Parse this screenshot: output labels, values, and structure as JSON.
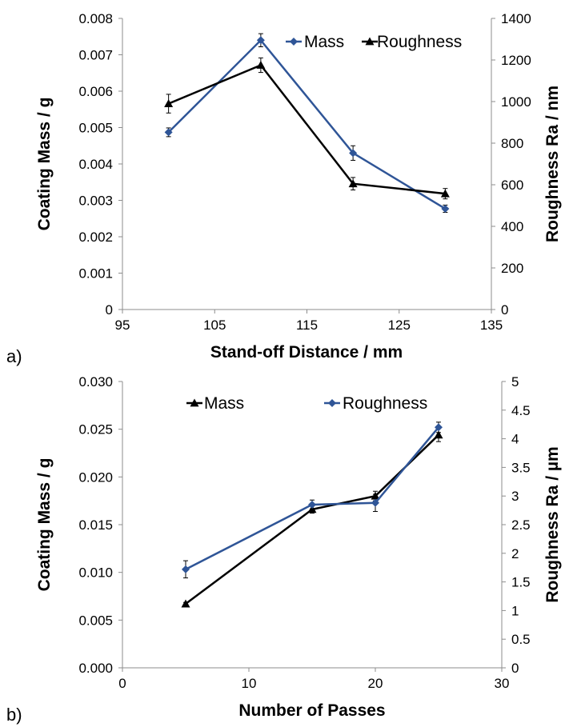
{
  "chart_data": [
    {
      "type": "line",
      "panel_label": "a)",
      "xlabel": "Stand-off Distance / mm",
      "ylabel": "Coating Mass / g",
      "y2label": "Roughness Ra / nm",
      "xlim": [
        95,
        135
      ],
      "xticks": [
        "95",
        "105",
        "115",
        "125",
        "135"
      ],
      "ylim": [
        0,
        0.008
      ],
      "yticks": [
        "0",
        "0.001",
        "0.002",
        "0.003",
        "0.004",
        "0.005",
        "0.006",
        "0.007",
        "0.008"
      ],
      "y2lim": [
        0,
        1400
      ],
      "y2ticks": [
        "0",
        "200",
        "400",
        "600",
        "800",
        "1000",
        "1200",
        "1400"
      ],
      "legend_position": "top-right",
      "series": [
        {
          "name": "Mass",
          "axis": "left",
          "marker": "diamond",
          "color": "#2f5597",
          "x": [
            100,
            110,
            120,
            130
          ],
          "y": [
            0.00487,
            0.0074,
            0.0043,
            0.00277
          ],
          "err": [
            0.00012,
            0.00018,
            0.0002,
            0.0001
          ]
        },
        {
          "name": "Roughness",
          "axis": "right",
          "marker": "triangle",
          "color": "#000000",
          "x": [
            100,
            110,
            120,
            130
          ],
          "y": [
            990,
            1175,
            605,
            557
          ],
          "err": [
            45,
            35,
            30,
            25
          ]
        }
      ]
    },
    {
      "type": "line",
      "panel_label": "b)",
      "xlabel": "Number of Passes",
      "ylabel": "Coating Mass / g",
      "y2label": "Roughness Ra / µm",
      "xlim": [
        0,
        30
      ],
      "xticks": [
        "0",
        "10",
        "20",
        "30"
      ],
      "ylim": [
        0,
        0.03
      ],
      "yticks": [
        "0.000",
        "0.005",
        "0.010",
        "0.015",
        "0.020",
        "0.025",
        "0.030"
      ],
      "y2lim": [
        0,
        5
      ],
      "y2ticks": [
        "0",
        "0.5",
        "1",
        "1.5",
        "2",
        "2.5",
        "3",
        "3.5",
        "4",
        "4.5",
        "5"
      ],
      "legend_position": "top",
      "series": [
        {
          "name": "Mass",
          "axis": "left",
          "marker": "triangle",
          "color": "#000000",
          "x": [
            5,
            15,
            20,
            25
          ],
          "y": [
            0.0067,
            0.0166,
            0.018,
            0.0244
          ],
          "err": [
            0.00015,
            0.0004,
            0.0005,
            0.0007
          ]
        },
        {
          "name": "Roughness",
          "axis": "right",
          "marker": "diamond",
          "color": "#2f5597",
          "x": [
            5,
            15,
            20,
            25
          ],
          "y": [
            1.72,
            2.85,
            2.88,
            4.2
          ],
          "err": [
            0.15,
            0.08,
            0.15,
            0.09
          ]
        }
      ]
    }
  ]
}
